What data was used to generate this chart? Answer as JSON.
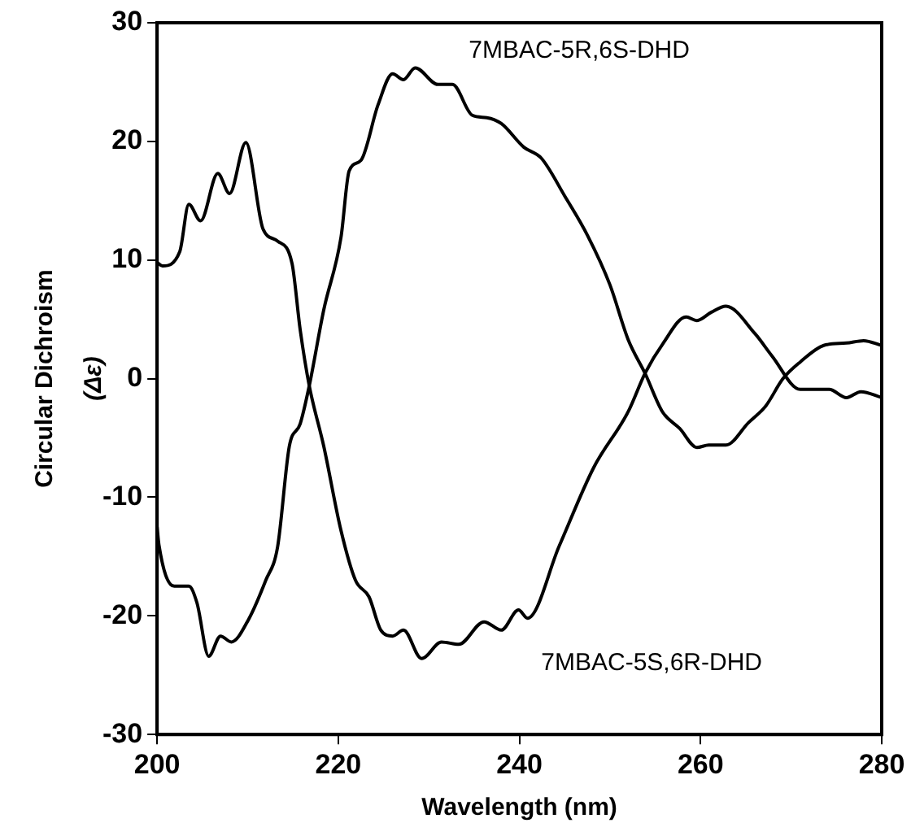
{
  "chart_data": {
    "type": "line",
    "xlabel": "Wavelength (nm)",
    "ylabel": "Circular Dichroism (Δε)",
    "xlim": [
      200,
      280
    ],
    "xticks": [
      200,
      220,
      240,
      260,
      280
    ],
    "ylim": [
      -30,
      30
    ],
    "yticks": [
      -30,
      -20,
      -10,
      0,
      10,
      20,
      30
    ],
    "grid": false,
    "legend": false,
    "marker": "none",
    "line_style": "solid",
    "series": [
      {
        "name": "7MBAC-5R,6S-DHD",
        "color": "#000000",
        "x": [
          200,
          200.2,
          201.9,
          203.5,
          204.4,
          205.7,
          207,
          208.2,
          210.1,
          212,
          213.3,
          214.6,
          215.8,
          216.8,
          218.4,
          220.3,
          221.2,
          222.5,
          224.4,
          226,
          227.2,
          228.5,
          231,
          232.6,
          234.8,
          236.4,
          238,
          240.5,
          242.4,
          245,
          247.5,
          250,
          252,
          253.9,
          255.8,
          257.7,
          259.6,
          260.9,
          262.8,
          265.3,
          267.2,
          269.1,
          271,
          273.6,
          276.1,
          278,
          280
        ],
        "values": [
          -12.5,
          -14,
          -17.5,
          -17.5,
          -18.9,
          -23.4,
          -21.7,
          -22.2,
          -20.3,
          -17,
          -14.2,
          -5.7,
          -3.8,
          -0.6,
          5.8,
          11.9,
          17.5,
          18.4,
          23.1,
          25.7,
          25.2,
          26.2,
          24.8,
          24.8,
          22.2,
          22,
          21.5,
          19.5,
          18.6,
          15.4,
          12.1,
          7.9,
          3.3,
          0.4,
          -2.8,
          -4.2,
          -5.8,
          -5.6,
          -5.6,
          -3.7,
          -2.3,
          0,
          1.4,
          2.8,
          3,
          3.2,
          2.8
        ]
      },
      {
        "name": "7MBAC-5S,6R-DHD",
        "color": "#000000",
        "x": [
          200,
          200.6,
          202.5,
          203.5,
          204.8,
          206.7,
          208,
          209.8,
          211.7,
          213.3,
          214.9,
          215.8,
          216.8,
          218.4,
          220.3,
          221.9,
          223.4,
          224.7,
          226,
          227.2,
          229.2,
          231.4,
          233.3,
          236.1,
          238,
          239.9,
          240.9,
          244.4,
          248.2,
          252,
          253.9,
          255.8,
          258.4,
          259.6,
          261.2,
          262.8,
          266,
          267.9,
          271,
          274.2,
          276.1,
          277.7,
          280
        ],
        "values": [
          9.8,
          9.5,
          10.7,
          14.7,
          13.3,
          17.3,
          15.6,
          19.9,
          12.6,
          11.6,
          9.7,
          4.1,
          -0.6,
          -5.7,
          -12.8,
          -17,
          -18.4,
          -21.2,
          -21.7,
          -21.2,
          -23.6,
          -22.2,
          -22.4,
          -20.5,
          -21.2,
          -19.5,
          -20.2,
          -14.1,
          -7.5,
          -2.8,
          0.5,
          2.9,
          5.2,
          4.9,
          5.6,
          6.1,
          3.8,
          1.9,
          -0.9,
          -0.9,
          -1.6,
          -1.1,
          -1.6
        ]
      }
    ]
  }
}
